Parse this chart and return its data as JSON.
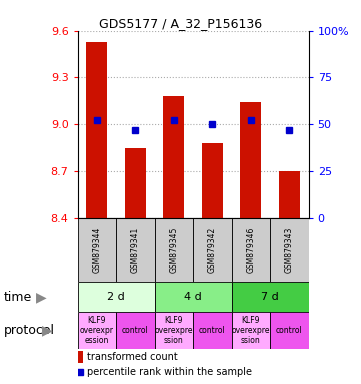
{
  "title": "GDS5177 / A_32_P156136",
  "samples": [
    "GSM879344",
    "GSM879341",
    "GSM879345",
    "GSM879342",
    "GSM879346",
    "GSM879343"
  ],
  "red_values": [
    9.53,
    8.85,
    9.18,
    8.88,
    9.14,
    8.7
  ],
  "blue_percentiles": [
    52,
    47,
    52,
    50,
    52,
    47
  ],
  "y_min": 8.4,
  "y_max": 9.6,
  "y_ticks": [
    8.4,
    8.7,
    9.0,
    9.3,
    9.6
  ],
  "right_y_ticks": [
    0,
    25,
    50,
    75,
    100
  ],
  "right_y_labels": [
    "0",
    "25",
    "50",
    "75",
    "100%"
  ],
  "time_groups": [
    {
      "label": "2 d",
      "start": 0,
      "end": 2,
      "color": "#ddffdd"
    },
    {
      "label": "4 d",
      "start": 2,
      "end": 4,
      "color": "#88ee88"
    },
    {
      "label": "7 d",
      "start": 4,
      "end": 6,
      "color": "#44cc44"
    }
  ],
  "protocol_groups": [
    {
      "label": "KLF9\noverexpr\nession",
      "start": 0,
      "end": 1,
      "color": "#ffaaff"
    },
    {
      "label": "control",
      "start": 1,
      "end": 2,
      "color": "#ee55ee"
    },
    {
      "label": "KLF9\noverexpre\nssion",
      "start": 2,
      "end": 3,
      "color": "#ffaaff"
    },
    {
      "label": "control",
      "start": 3,
      "end": 4,
      "color": "#ee55ee"
    },
    {
      "label": "KLF9\noverexpre\nssion",
      "start": 4,
      "end": 5,
      "color": "#ffaaff"
    },
    {
      "label": "control",
      "start": 5,
      "end": 6,
      "color": "#ee55ee"
    }
  ],
  "bar_color": "#cc1100",
  "dot_color": "#0000cc",
  "background_color": "#ffffff",
  "sample_box_color": "#cccccc",
  "grid_color": "#aaaaaa"
}
